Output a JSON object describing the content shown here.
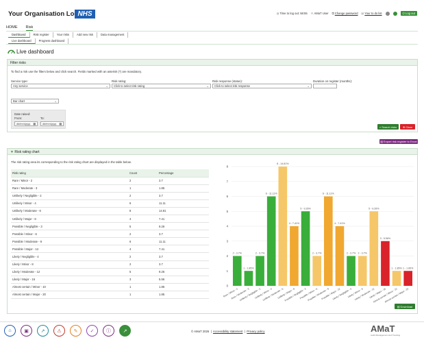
{
  "header": {
    "org_logo": "Your Organisation Logo",
    "nhs": "NHS",
    "links": [
      {
        "icon": "clock-icon",
        "label": "Time to log out: 58:55",
        "underline": false
      },
      {
        "icon": "user-icon",
        "label": "AMaT User",
        "underline": false
      },
      {
        "icon": "password-icon",
        "label": "Change password",
        "underline": true
      },
      {
        "icon": "todo-icon",
        "label": "Your to do list",
        "underline": true
      }
    ],
    "logout": "Log out"
  },
  "nav": {
    "items": [
      "HOME",
      "Risk"
    ]
  },
  "subnav1": [
    "Dashboard",
    "Risk register",
    "Your risks",
    "Add new risk",
    "Data management"
  ],
  "subnav2": [
    "Live dashboard",
    "Progress dashboard"
  ],
  "page_title": "Live dashboard",
  "filter": {
    "title": "Filter risks",
    "instruction": "To find a risk use the filters below and click search. Fields marked with an asterisk (*) are mandatory.",
    "service_label": "Service type:",
    "service_value": "Any service",
    "rating_label": "Risk rating:",
    "rating_value": "Click to select risk rating",
    "response_label": "Risk response (status):",
    "response_value": "Click to select risk response",
    "duration_label": "Duration on register (months):",
    "duration_value": "",
    "chart_type_value": "Bar chart",
    "date_raised_label": "Date raised:",
    "from_label": "From:",
    "to_label": "To:",
    "date_placeholder": "dd/mm/yyyy",
    "search": "Search risks",
    "clear": "Clear"
  },
  "export": "Export risk register to Excel",
  "chart_panel": {
    "title": "Risk rating chart",
    "intro": "The risk rating area its corresponding to the risk rating chart are displayed in the table below.",
    "col_rating": "Risk rating",
    "col_count": "Count",
    "col_pct": "Percentage",
    "download": "Download"
  },
  "chart_data": {
    "type": "bar",
    "ylim": [
      0,
      8
    ],
    "yticks": [
      "0",
      "1",
      "2",
      "3",
      "4",
      "5",
      "6",
      "7",
      "8"
    ],
    "categories": [
      "Rare / Minor - 2",
      "Rare / Moderate - 3",
      "Unlikely / Negligible - 2",
      "Unlikely / Minor - 4",
      "Unlikely / Moderate - 6",
      "Unlikely / Major - 8",
      "Possible / Negligible - 3",
      "Possible / Minor - 6",
      "Possible / Moderate - 9",
      "Possible / Major - 12",
      "Likely / Negligible - 4",
      "Likely / Minor - 8",
      "Likely / Moderate - 12",
      "Likely / Major - 16",
      "Almost certain / Minor - 10",
      "Almost certain / Major - 20"
    ],
    "values": [
      2,
      1,
      2,
      6,
      8,
      4,
      5,
      2,
      6,
      4,
      2,
      2,
      5,
      3,
      1,
      1
    ],
    "percentages": [
      "3.7",
      "1.85",
      "3.7",
      "11.11",
      "14.81",
      "7.41",
      "9.26",
      "3.7",
      "11.11",
      "7.41",
      "3.7",
      "3.7",
      "9.26",
      "5.56",
      "1.85",
      "1.85"
    ],
    "bar_labels": [
      "2 - 3.7%",
      "1 - 1.85%",
      "2 - 3.7%",
      "6 - 11.11%",
      "8 - 14.81%",
      "4 - 7.41%",
      "5 - 9.26%",
      "2 - 3.7%",
      "6 - 11.11%",
      "4 - 7.41%",
      "2 - 3.7%",
      "2 - 3.7%",
      "5 - 9.26%",
      "3 - 5.56%",
      "1 - 1.85%",
      "1 - 1.85%"
    ],
    "axis_labels": [
      "Rare / Minor - 2",
      "Rare / Moderate - 3",
      "Unlikely / Negligible - 2",
      "Unlikely / Minor - 4",
      "Unlikely / Moderate - 6",
      "Unlikely / Major - 8",
      "Possible / Negligible - 3",
      "Possible / Minor - 6",
      "Possible / Moderate - 9",
      "Possible / Major - 12",
      "Likely / Negligible - 4",
      "Likely / Minor - 8",
      "Likely / Moderate - 12",
      "Likely / Major - 16",
      "Almost certain / Minor - 10",
      "Almost certain / Major - 20"
    ],
    "colors": [
      "#3aae3a",
      "#3aae3a",
      "#3aae3a",
      "#3aae3a",
      "#f6c768",
      "#f0a830",
      "#3aae3a",
      "#f6c768",
      "#f0a830",
      "#f0a830",
      "#3aae3a",
      "#f6c768",
      "#f6c768",
      "#d9222a",
      "#f6c768",
      "#d9222a"
    ]
  },
  "footer": {
    "copyright": "© AMaT 2026",
    "accessibility": "Accessibility statement",
    "privacy": "Privacy policy",
    "brand": "AMaT",
    "brand_sub": "Audit Management and Tracking",
    "icons": [
      "home-icon",
      "inbox-icon",
      "chart-icon",
      "risk-icon",
      "edit-icon",
      "check-icon",
      "info-icon",
      "trend-icon"
    ]
  }
}
